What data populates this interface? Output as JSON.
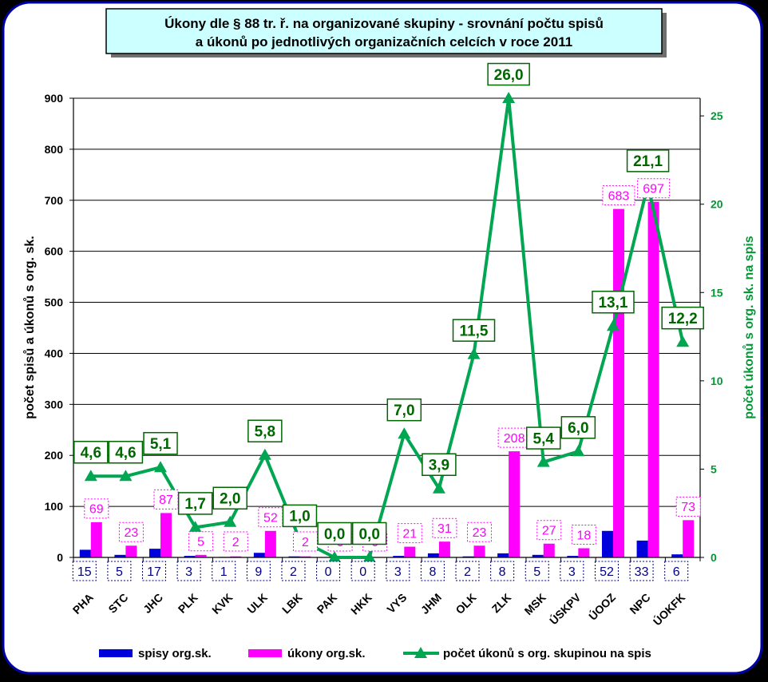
{
  "chart_data": {
    "type": "bar",
    "title_lines": [
      "Úkony dle § 88 tr. ř.  na organizované skupiny -  srovnání počtu spisů",
      "a úkonů po jednotlivých organizačních celcích v roce 2011"
    ],
    "ylabel": "počet spisů a úkonů s org. sk.",
    "y2label": "počet úkonů s org. sk. na spis",
    "ylim": [
      0,
      900
    ],
    "y_ticks": [
      0,
      100,
      200,
      300,
      400,
      500,
      600,
      700,
      800,
      900
    ],
    "y2lim": [
      0,
      26
    ],
    "y2_ticks": [
      0,
      5,
      10,
      15,
      20,
      25
    ],
    "categories": [
      "PHA",
      "STC",
      "JHC",
      "PLK",
      "KVK",
      "ULK",
      "LBK",
      "PAK",
      "HKK",
      "VYS",
      "JHM",
      "OLK",
      "ZLK",
      "MSK",
      "ÚSKPV",
      "ÚOOZ",
      "NPC",
      "ÚOKFK"
    ],
    "series": [
      {
        "name": "spisy org.sk.",
        "type": "bar",
        "axis": "left",
        "color": "#0000DD",
        "values": [
          15,
          5,
          17,
          3,
          1,
          9,
          2,
          0,
          0,
          3,
          8,
          2,
          8,
          5,
          3,
          52,
          33,
          6
        ],
        "labels": [
          "15",
          "5",
          "17",
          "3",
          "1",
          "9",
          "2",
          "0",
          "0",
          "3",
          "8",
          "2",
          "8",
          "5",
          "3",
          "52",
          "33",
          "6"
        ]
      },
      {
        "name": "úkony org.sk.",
        "type": "bar",
        "axis": "left",
        "color": "#FF00FF",
        "values": [
          69,
          23,
          87,
          5,
          2,
          52,
          2,
          0,
          0,
          21,
          31,
          23,
          208,
          27,
          18,
          683,
          697,
          73
        ],
        "labels": [
          "69",
          "23",
          "87",
          "5",
          "2",
          "52",
          "2",
          "0",
          "0",
          "21",
          "31",
          "23",
          "208",
          "27",
          "18",
          "683",
          "697",
          "73"
        ]
      },
      {
        "name": "počet úkonů  s org. skupinou na spis",
        "type": "line",
        "axis": "right",
        "color": "#00A651",
        "values": [
          4.6,
          4.6,
          5.1,
          1.7,
          2.0,
          5.8,
          1.0,
          0.0,
          0.0,
          7.0,
          3.9,
          11.5,
          26.0,
          5.4,
          6.0,
          13.1,
          21.1,
          12.2
        ],
        "labels": [
          "4,6",
          "4,6",
          "5,1",
          "1,7",
          "2,0",
          "5,8",
          "1,0",
          "0,0",
          "0,0",
          "7,0",
          "3,9",
          "11,5",
          "26,0",
          "5,4",
          "6,0",
          "13,1",
          "21,1",
          "12,2"
        ]
      }
    ],
    "grid": true,
    "legend_position": "bottom",
    "colors": {
      "frame": "#0000AA",
      "title_fill": "#CCFFFF",
      "line_label": "#006600",
      "bar1_label": "#000080",
      "bar2_label": "#FF00FF",
      "right_axis_text": "#009933"
    }
  }
}
